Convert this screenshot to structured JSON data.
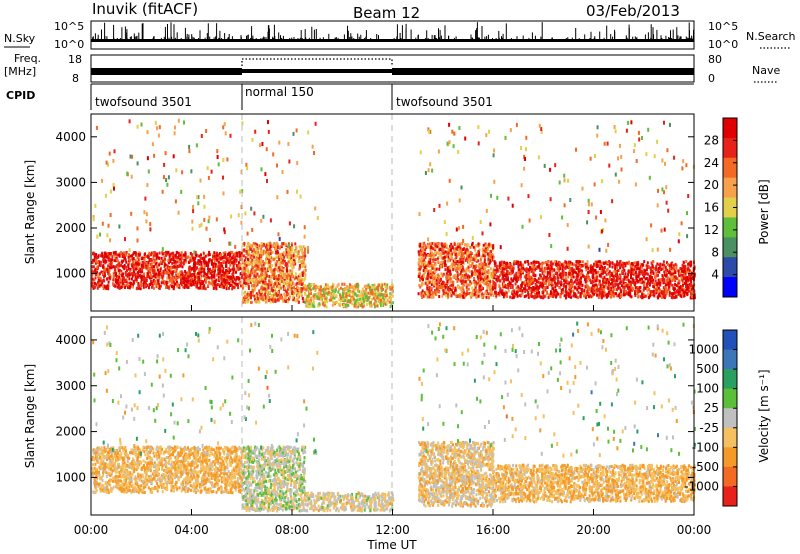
{
  "header": {
    "station": "Inuvik (fitACF)",
    "beam": "Beam 12",
    "date": "03/Feb/2013"
  },
  "noise_panel": {
    "left_label": "N.Sky",
    "right_label": "N.Search",
    "left_ticks": [
      "10^5",
      "10^0"
    ],
    "right_ticks": [
      "10^5",
      "10^0"
    ]
  },
  "freq_panel": {
    "left_label_1": "Freq.",
    "left_label_2": "[MHz]",
    "left_ticks": [
      "18",
      "8"
    ],
    "right_label": "Nave",
    "right_ticks": [
      "80",
      "0"
    ]
  },
  "cpid_panel": {
    "label": "CPID",
    "segments": [
      {
        "name": "twofsound 3501",
        "start_hour": 0,
        "end_hour": 6
      },
      {
        "name": "normal 150",
        "start_hour": 6,
        "end_hour": 12
      },
      {
        "name": "twofsound 3501",
        "start_hour": 12,
        "end_hour": 24
      }
    ]
  },
  "x_axis": {
    "label": "Time UT",
    "ticks": [
      "00:00",
      "04:00",
      "08:00",
      "12:00",
      "16:00",
      "20:00",
      "00:00"
    ]
  },
  "power_panel": {
    "ylabel": "Slant Range [km]",
    "yticks": [
      "1000",
      "2000",
      "3000",
      "4000"
    ],
    "colorbar_label": "Power [dB]",
    "colorbar_ticks": [
      "4",
      "8",
      "12",
      "16",
      "20",
      "24",
      "28"
    ],
    "colorbar_colors": [
      "#0000ff",
      "#2c4aa8",
      "#4a9060",
      "#5fbf3a",
      "#e3d04a",
      "#f7a24a",
      "#f26a24",
      "#e8221a",
      "#e00000"
    ]
  },
  "velocity_panel": {
    "ylabel": "Slant Range [km]",
    "yticks": [
      "1000",
      "2000",
      "3000",
      "4000"
    ],
    "colorbar_label": "Velocity [m s⁻¹]",
    "colorbar_ticks": [
      "1000",
      "500",
      "100",
      "25",
      "-25",
      "-100",
      "-500",
      "-1000"
    ],
    "colorbar_colors": [
      "#2050b8",
      "#3a76b8",
      "#2aa060",
      "#5cbf3a",
      "#c0c0c0",
      "#f5c060",
      "#f59a28",
      "#f26a24",
      "#e8221a"
    ]
  },
  "chart_data": [
    {
      "type": "heatmap",
      "title": "Power",
      "xlabel": "Time UT",
      "ylabel": "Slant Range [km]",
      "xlim": [
        0,
        24
      ],
      "ylim": [
        180,
        4500
      ],
      "colorbar": {
        "label": "Power [dB]",
        "range": [
          0,
          32
        ],
        "ticks": [
          4,
          8,
          12,
          16,
          20,
          24,
          28
        ]
      },
      "regions": [
        {
          "hours": [
            0,
            6
          ],
          "range_km": [
            700,
            1500
          ],
          "power_db": 28
        },
        {
          "hours": [
            6,
            8.5
          ],
          "range_km": [
            400,
            1700
          ],
          "power_db": 22
        },
        {
          "hours": [
            8.5,
            12
          ],
          "range_km": [
            300,
            800
          ],
          "power_db": 18
        },
        {
          "hours": [
            13,
            16
          ],
          "range_km": [
            500,
            1700
          ],
          "power_db": 24
        },
        {
          "hours": [
            16,
            24
          ],
          "range_km": [
            500,
            1300
          ],
          "power_db": 28
        }
      ]
    },
    {
      "type": "heatmap",
      "title": "Velocity",
      "xlabel": "Time UT",
      "ylabel": "Slant Range [km]",
      "xlim": [
        0,
        24
      ],
      "ylim": [
        180,
        4500
      ],
      "colorbar": {
        "label": "Velocity [m s⁻¹]",
        "range": [
          -1000,
          1000
        ],
        "ticks": [
          1000,
          500,
          100,
          25,
          -25,
          -100,
          -500,
          -1000
        ]
      },
      "regions": [
        {
          "hours": [
            0,
            6
          ],
          "range_km": [
            700,
            1700
          ],
          "velocity_ms": -300
        },
        {
          "hours": [
            6,
            8.5
          ],
          "range_km": [
            300,
            1700
          ],
          "velocity_ms": 0
        },
        {
          "hours": [
            8.5,
            12
          ],
          "range_km": [
            300,
            700
          ],
          "velocity_ms": -100
        },
        {
          "hours": [
            13,
            16
          ],
          "range_km": [
            400,
            1800
          ],
          "velocity_ms": -200
        },
        {
          "hours": [
            16,
            24
          ],
          "range_km": [
            500,
            1300
          ],
          "velocity_ms": -300
        }
      ]
    }
  ]
}
